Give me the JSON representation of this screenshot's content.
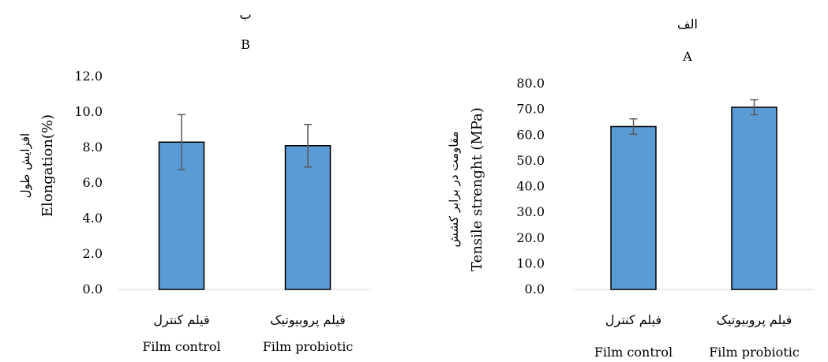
{
  "chart_data": [
    {
      "type": "bar",
      "title_fa": "ب",
      "title": "B",
      "ylabel_fa": "افزایش طول",
      "ylabel": "Elongation(%)",
      "categories_fa": [
        "فیلم کنترل",
        "فیلم پروبیوتیک"
      ],
      "categories": [
        "Film control",
        "Film probiotic"
      ],
      "values": [
        8.3,
        8.1
      ],
      "error": [
        1.55,
        1.2
      ],
      "ylim": [
        0,
        12
      ],
      "yticks": [
        "0.0",
        "2.0",
        "4.0",
        "6.0",
        "8.0",
        "10.0",
        "12.0"
      ],
      "color": "#5b9bd5",
      "error_color": "#595959"
    },
    {
      "type": "bar",
      "title_fa": "الف",
      "title": "A",
      "ylabel_fa": "مقاومت در برابر کشش",
      "ylabel": "Tensile strenght (MPa)",
      "categories_fa": [
        "فیلم کنترل",
        "فیلم پروبیوتیک"
      ],
      "categories": [
        "Film control",
        "Film probiotic"
      ],
      "values": [
        63.3,
        70.8
      ],
      "error": [
        3.0,
        2.9
      ],
      "ylim": [
        0,
        80
      ],
      "yticks": [
        "0.0",
        "10.0",
        "20.0",
        "30.0",
        "40.0",
        "50.0",
        "60.0",
        "70.0",
        "80.0"
      ],
      "color": "#5b9bd5",
      "error_color": "#595959"
    }
  ]
}
